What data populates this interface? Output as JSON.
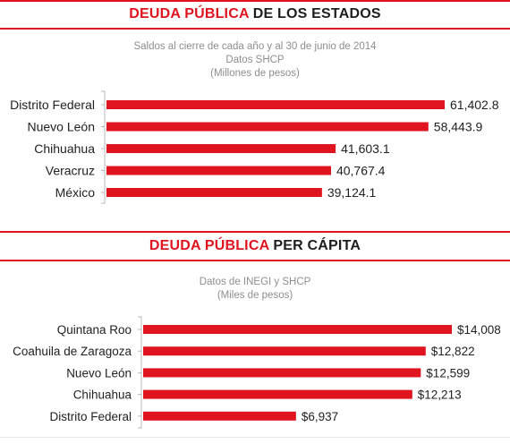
{
  "charts": [
    {
      "heading_accent": "DEUDA PÚBLICA",
      "heading_rest": " DE LOS ESTADOS",
      "subtitle_lines": [
        "Saldos al cierre de cada año y  al 30 de junio de 2014",
        "Datos SHCP",
        "(Millones de pesos)"
      ]
    },
    {
      "heading_accent": "DEUDA PÚBLICA",
      "heading_rest": " PER CÁPITA",
      "subtitle_lines": [
        "Datos de INEGI y SHCP",
        "(Miles de pesos)"
      ]
    }
  ],
  "chart_data": [
    {
      "type": "bar",
      "orientation": "horizontal",
      "title": "DEUDA PÚBLICA DE LOS ESTADOS",
      "subtitle": "Saldos al cierre de cada año y  al 30 de junio de 2014 / Datos SHCP / (Millones de pesos)",
      "categories": [
        "Distrito Federal",
        "Nuevo León",
        "Chihuahua",
        "Veracruz",
        "México"
      ],
      "values": [
        61402.8,
        58443.9,
        41603.1,
        40767.4,
        39124.1
      ],
      "value_labels": [
        "61,402.8",
        "58,443.9",
        "41,603.1",
        "40,767.4",
        "39,124.1"
      ],
      "xlim": [
        0,
        61402.8
      ],
      "bar_color": "#e0141e",
      "grid": false
    },
    {
      "type": "bar",
      "orientation": "horizontal",
      "title": "DEUDA PÚBLICA PER CÁPITA",
      "subtitle": "Datos de INEGI y SHCP / (Miles de pesos)",
      "categories": [
        "Quintana Roo",
        "Coahuila de Zaragoza",
        "Nuevo León",
        "Chihuahua",
        "Distrito Federal"
      ],
      "values": [
        14008,
        12822,
        12599,
        12213,
        6937
      ],
      "value_labels": [
        "$14,008",
        "$12,822",
        "$12,599",
        "$12,213",
        "$6,937"
      ],
      "xlim": [
        0,
        14008
      ],
      "bar_color": "#e0141e",
      "grid": false
    }
  ]
}
